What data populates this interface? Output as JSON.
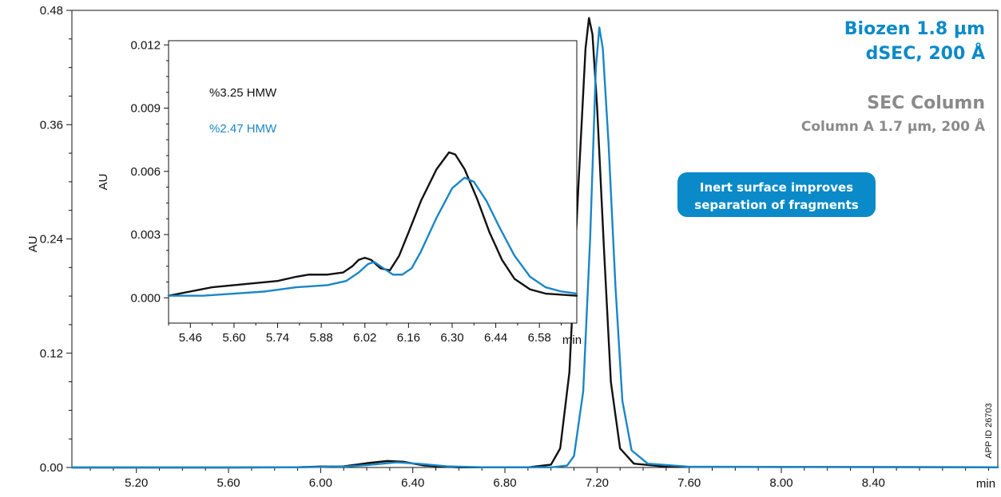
{
  "header": {
    "product_line1": "Biozen 1.8 µm",
    "product_line2": "dSEC, 200 Å",
    "compare_title": "SEC Column",
    "compare_subtitle": "Column A 1.7 µm, 200 Å"
  },
  "callout": {
    "line1": "Inert surface improves",
    "line2": "separation of fragments",
    "color": "#0a8ac8"
  },
  "app_id": "APP ID 26703",
  "colors": {
    "black_series": "#111111",
    "blue_series": "#1a86c6"
  },
  "chart_data": [
    {
      "type": "line",
      "role": "main",
      "ylabel": "AU",
      "xunit": "min",
      "xlim": [
        4.92,
        8.94
      ],
      "ylim": [
        0,
        0.48
      ],
      "xticks": [
        "5.20",
        "5.60",
        "6.00",
        "6.40",
        "6.80",
        "7.20",
        "7.60",
        "8.00",
        "8.40"
      ],
      "yticks": [
        "0.00",
        "0.12",
        "0.24",
        "0.36",
        "0.48"
      ],
      "series": [
        {
          "color_key": "black_series",
          "points": [
            [
              4.92,
              0
            ],
            [
              5.6,
              0
            ],
            [
              5.9,
              0.0003
            ],
            [
              6.0,
              0.001
            ],
            [
              6.1,
              0.0012
            ],
            [
              6.2,
              0.0045
            ],
            [
              6.29,
              0.0068
            ],
            [
              6.36,
              0.006
            ],
            [
              6.45,
              0.002
            ],
            [
              6.6,
              0.0002
            ],
            [
              6.9,
              0.0002
            ],
            [
              7.0,
              0.003
            ],
            [
              7.04,
              0.02
            ],
            [
              7.08,
              0.1
            ],
            [
              7.12,
              0.3
            ],
            [
              7.15,
              0.44
            ],
            [
              7.165,
              0.472
            ],
            [
              7.18,
              0.455
            ],
            [
              7.2,
              0.38
            ],
            [
              7.23,
              0.23
            ],
            [
              7.26,
              0.09
            ],
            [
              7.3,
              0.02
            ],
            [
              7.36,
              0.004
            ],
            [
              7.5,
              0.0008
            ],
            [
              8.0,
              0.0005
            ],
            [
              8.94,
              0.0003
            ]
          ]
        },
        {
          "color_key": "blue_series",
          "points": [
            [
              4.92,
              0
            ],
            [
              5.6,
              0
            ],
            [
              5.9,
              0.0002
            ],
            [
              6.0,
              0.0006
            ],
            [
              6.05,
              0.0012
            ],
            [
              6.1,
              0.0009
            ],
            [
              6.2,
              0.0025
            ],
            [
              6.33,
              0.0054
            ],
            [
              6.42,
              0.004
            ],
            [
              6.55,
              0.0012
            ],
            [
              6.7,
              0.0003
            ],
            [
              7.0,
              0.0002
            ],
            [
              7.07,
              0.002
            ],
            [
              7.1,
              0.012
            ],
            [
              7.14,
              0.08
            ],
            [
              7.17,
              0.24
            ],
            [
              7.195,
              0.42
            ],
            [
              7.21,
              0.462
            ],
            [
              7.225,
              0.44
            ],
            [
              7.25,
              0.34
            ],
            [
              7.28,
              0.19
            ],
            [
              7.31,
              0.07
            ],
            [
              7.35,
              0.018
            ],
            [
              7.42,
              0.004
            ],
            [
              7.6,
              0.0008
            ],
            [
              8.94,
              0.0003
            ]
          ]
        }
      ]
    },
    {
      "type": "line",
      "role": "inset",
      "ylabel": "AU",
      "xunit": "min",
      "xlim": [
        5.39,
        6.7
      ],
      "ylim": [
        -0.0012,
        0.0122
      ],
      "xticks": [
        "5.46",
        "5.60",
        "5.74",
        "5.88",
        "6.02",
        "6.16",
        "6.30",
        "6.44",
        "6.58"
      ],
      "yticks": [
        "0.000",
        "0.003",
        "0.006",
        "0.009",
        "0.012"
      ],
      "legend": [
        {
          "text": "%3.25 HMW",
          "color_key": "black_series"
        },
        {
          "text": "%2.47 HMW",
          "color_key": "blue_series"
        }
      ],
      "series": [
        {
          "color_key": "black_series",
          "points": [
            [
              5.39,
              0.0001
            ],
            [
              5.46,
              0.0003
            ],
            [
              5.53,
              0.0005
            ],
            [
              5.6,
              0.0006
            ],
            [
              5.67,
              0.0007
            ],
            [
              5.74,
              0.0008
            ],
            [
              5.8,
              0.001
            ],
            [
              5.84,
              0.0011
            ],
            [
              5.9,
              0.0011
            ],
            [
              5.95,
              0.0012
            ],
            [
              5.98,
              0.0015
            ],
            [
              6.0,
              0.0018
            ],
            [
              6.02,
              0.0019
            ],
            [
              6.04,
              0.0018
            ],
            [
              6.07,
              0.0014
            ],
            [
              6.1,
              0.0013
            ],
            [
              6.13,
              0.002
            ],
            [
              6.16,
              0.0031
            ],
            [
              6.2,
              0.0046
            ],
            [
              6.25,
              0.0061
            ],
            [
              6.29,
              0.0069
            ],
            [
              6.31,
              0.0068
            ],
            [
              6.34,
              0.0061
            ],
            [
              6.38,
              0.0047
            ],
            [
              6.42,
              0.0031
            ],
            [
              6.46,
              0.0018
            ],
            [
              6.5,
              0.0009
            ],
            [
              6.55,
              0.0004
            ],
            [
              6.6,
              0.0002
            ],
            [
              6.7,
              0.0001
            ]
          ]
        },
        {
          "color_key": "blue_series",
          "points": [
            [
              5.39,
              0.0001
            ],
            [
              5.5,
              0.0001
            ],
            [
              5.6,
              0.0002
            ],
            [
              5.7,
              0.0003
            ],
            [
              5.8,
              0.0005
            ],
            [
              5.9,
              0.0006
            ],
            [
              5.96,
              0.0008
            ],
            [
              6.0,
              0.0012
            ],
            [
              6.03,
              0.0016
            ],
            [
              6.05,
              0.0017
            ],
            [
              6.08,
              0.0014
            ],
            [
              6.11,
              0.0011
            ],
            [
              6.14,
              0.0011
            ],
            [
              6.17,
              0.0014
            ],
            [
              6.2,
              0.0022
            ],
            [
              6.25,
              0.0038
            ],
            [
              6.3,
              0.0052
            ],
            [
              6.34,
              0.0057
            ],
            [
              6.37,
              0.0055
            ],
            [
              6.41,
              0.0046
            ],
            [
              6.45,
              0.0034
            ],
            [
              6.5,
              0.002
            ],
            [
              6.55,
              0.001
            ],
            [
              6.6,
              0.0005
            ],
            [
              6.65,
              0.0003
            ],
            [
              6.7,
              0.0002
            ]
          ]
        }
      ]
    }
  ]
}
